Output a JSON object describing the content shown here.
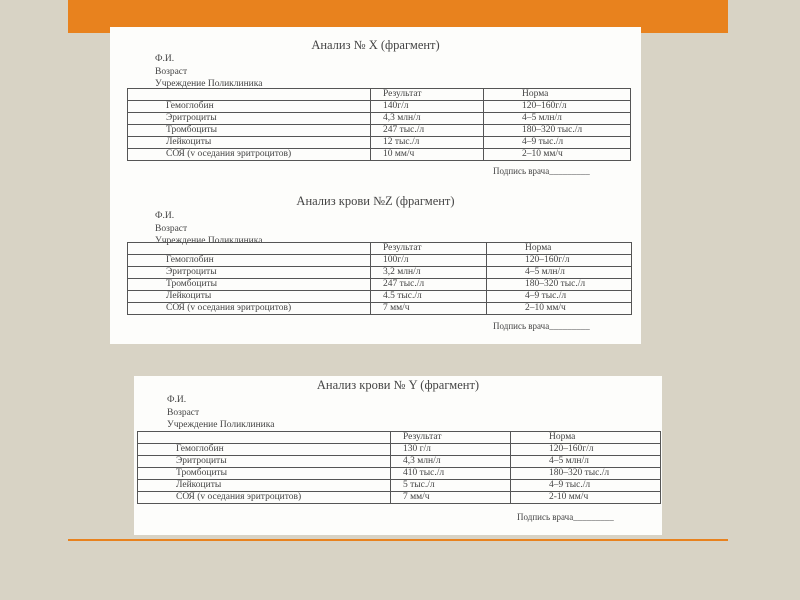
{
  "slide": {
    "accent_color": "#e8821e",
    "background_color": "#d8d3c5"
  },
  "documents": [
    {
      "title": "Анализ № X (фрагмент)",
      "meta": [
        "Ф.И.",
        "Возраст",
        "Учреждение Поликлиника"
      ],
      "headers": [
        "",
        "Результат",
        "Норма"
      ],
      "rows": [
        [
          "Гемоглобин",
          "140г/л",
          "120–160г/л"
        ],
        [
          "Эритроциты",
          "4,3 млн/л",
          "4–5 млн/л"
        ],
        [
          "Тромбоциты",
          "247 тыс./л",
          "180–320 тыс./л"
        ],
        [
          "Лейкоциты",
          "12 тыс./л",
          "4–9 тыс./л"
        ],
        [
          "СОЯ (v оседания эритроцитов)",
          "10 мм/ч",
          "2–10 мм/ч"
        ]
      ],
      "signature": "Подпись врача_________"
    },
    {
      "title": "Анализ крови №Z (фрагмент)",
      "meta": [
        "Ф.И.",
        "Возраст",
        "Учреждение Поликлиника"
      ],
      "headers": [
        "",
        "Результат",
        "Норма"
      ],
      "rows": [
        [
          "Гемоглобин",
          "100г/л",
          "120–160г/л"
        ],
        [
          "Эритроциты",
          "3,2 млн/л",
          "4–5 млн/л"
        ],
        [
          "Тромбоциты",
          "247 тыс./л",
          "180–320 тыс./л"
        ],
        [
          "Лейкоциты",
          "4.5 тыс./л",
          "4–9 тыс./л"
        ],
        [
          "СОЯ (v оседания эритроцитов)",
          "7 мм/ч",
          "2–10 мм/ч"
        ]
      ],
      "signature": "Подпись врача_________"
    },
    {
      "title": "Анализ крови № Y (фрагмент)",
      "meta": [
        "Ф.И.",
        "Возраст",
        "Учреждение Поликлиника"
      ],
      "headers": [
        "",
        "Результат",
        "Норма"
      ],
      "rows": [
        [
          "Гемоглобин",
          "130 г/л",
          "120–160г/л"
        ],
        [
          "Эритроциты",
          "4,3 млн/л",
          "4–5 млн/л"
        ],
        [
          "Тромбоциты",
          "410 тыс./л",
          "180–320 тыс./л"
        ],
        [
          "Лейкоциты",
          "5 тыс./л",
          "4–9 тыс./л"
        ],
        [
          "СОЯ (v оседания эритроцитов)",
          "7 мм/ч",
          "2-10 мм/ч"
        ]
      ],
      "signature": "Подпись врача_________"
    }
  ]
}
